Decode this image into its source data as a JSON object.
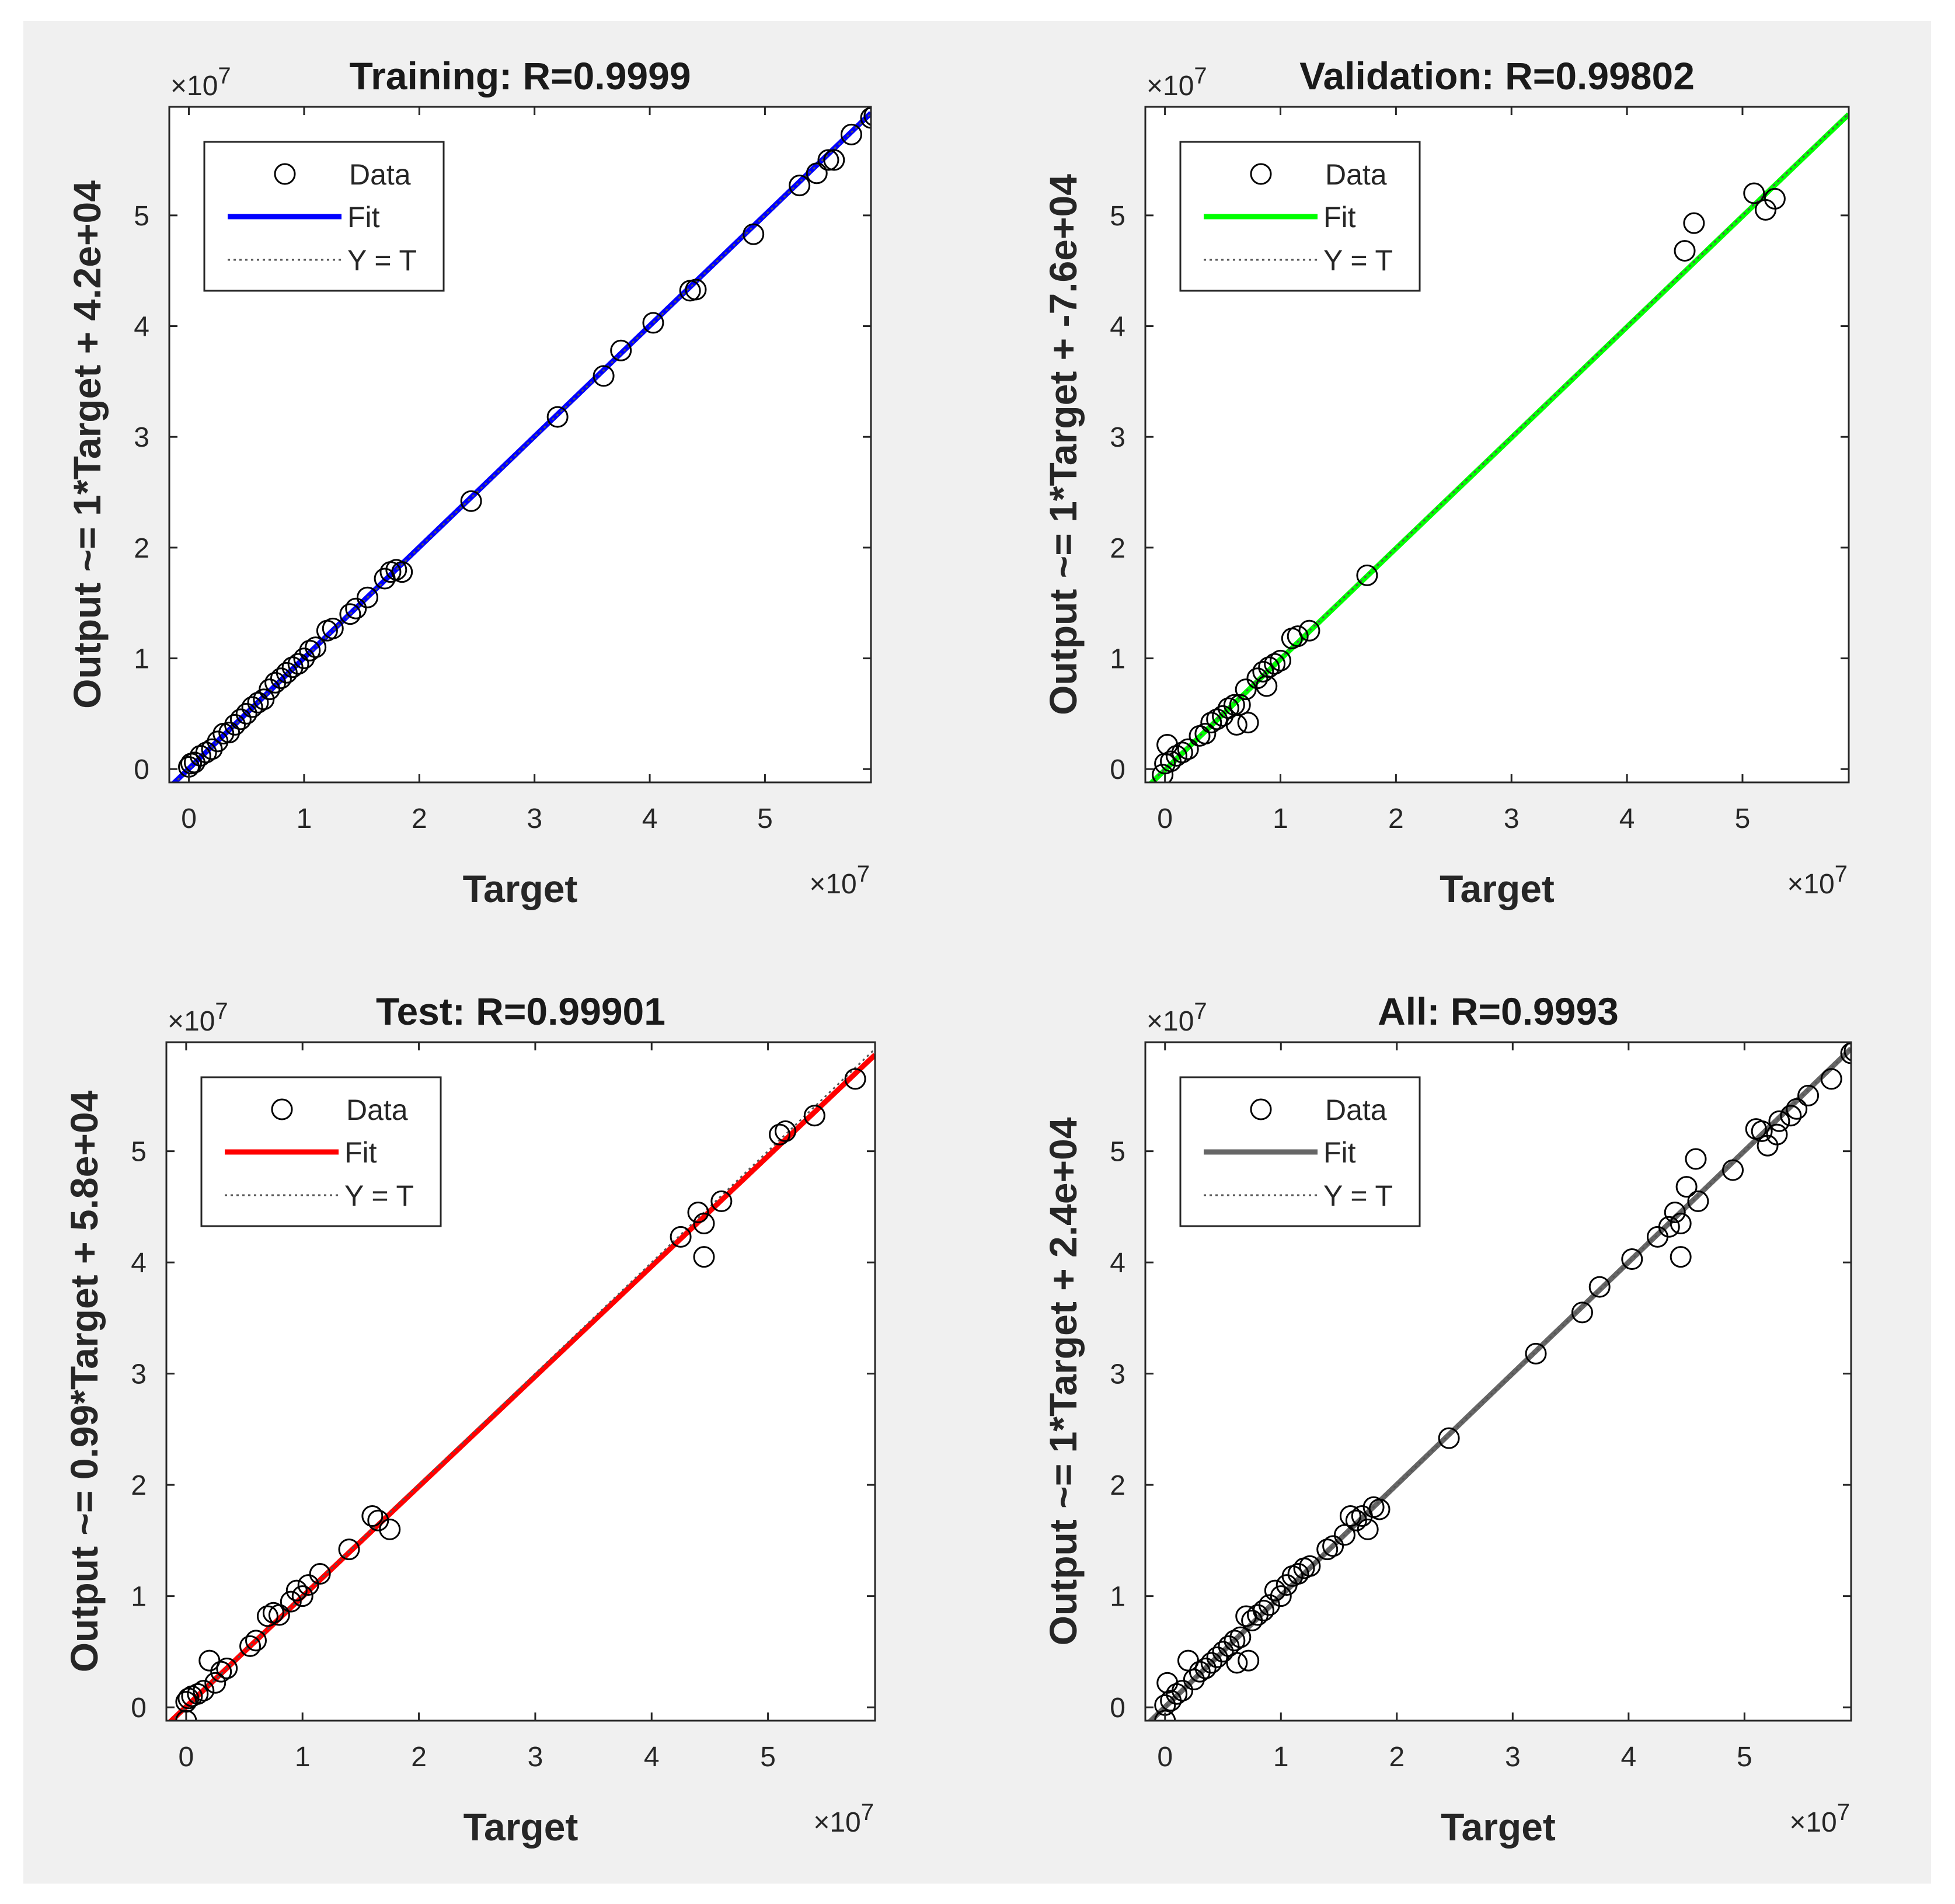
{
  "figure_background": "#f0f0f0",
  "chart_data": [
    {
      "type": "scatter",
      "title": "Training: R=0.9999",
      "xlabel": "Target",
      "ylabel": "Output ~= 1*Target + 4.2e+04",
      "x_exponent_label": "×10",
      "y_exponent_label": "×10",
      "exponent": "7",
      "xlim": [
        -0.17,
        5.92
      ],
      "ylim": [
        -0.12,
        5.98
      ],
      "xticks": [
        "0",
        "1",
        "2",
        "3",
        "4",
        "5"
      ],
      "yticks": [
        "0",
        "1",
        "2",
        "3",
        "4",
        "5"
      ],
      "grid": false,
      "legend": {
        "placement": "top-left",
        "entries": [
          "Data",
          "Fit",
          "Y = T"
        ]
      },
      "fit": {
        "slope": 1.0,
        "intercept": 0.0042,
        "color": "#0000ff"
      },
      "identity_line": {
        "style": "dotted",
        "color": "#555555"
      },
      "series": [
        {
          "name": "Data",
          "marker": "circle",
          "color": "#000000",
          "points": [
            [
              0.0,
              0.02
            ],
            [
              0.02,
              0.05
            ],
            [
              0.05,
              0.06
            ],
            [
              0.1,
              0.12
            ],
            [
              0.15,
              0.15
            ],
            [
              0.2,
              0.18
            ],
            [
              0.25,
              0.25
            ],
            [
              0.3,
              0.32
            ],
            [
              0.35,
              0.33
            ],
            [
              0.4,
              0.4
            ],
            [
              0.45,
              0.45
            ],
            [
              0.5,
              0.5
            ],
            [
              0.55,
              0.56
            ],
            [
              0.6,
              0.6
            ],
            [
              0.65,
              0.63
            ],
            [
              0.7,
              0.72
            ],
            [
              0.75,
              0.78
            ],
            [
              0.8,
              0.82
            ],
            [
              0.85,
              0.87
            ],
            [
              0.9,
              0.92
            ],
            [
              0.95,
              0.95
            ],
            [
              1.0,
              1.0
            ],
            [
              1.05,
              1.07
            ],
            [
              1.1,
              1.1
            ],
            [
              1.2,
              1.25
            ],
            [
              1.25,
              1.27
            ],
            [
              1.4,
              1.4
            ],
            [
              1.45,
              1.45
            ],
            [
              1.55,
              1.55
            ],
            [
              1.7,
              1.72
            ],
            [
              1.75,
              1.78
            ],
            [
              1.8,
              1.8
            ],
            [
              1.85,
              1.78
            ],
            [
              2.45,
              2.42
            ],
            [
              3.2,
              3.18
            ],
            [
              3.6,
              3.55
            ],
            [
              3.75,
              3.78
            ],
            [
              4.03,
              4.03
            ],
            [
              4.35,
              4.32
            ],
            [
              4.4,
              4.33
            ],
            [
              4.9,
              4.83
            ],
            [
              5.3,
              5.27
            ],
            [
              5.45,
              5.38
            ],
            [
              5.55,
              5.5
            ],
            [
              5.6,
              5.5
            ],
            [
              5.75,
              5.73
            ],
            [
              5.92,
              5.88
            ],
            [
              5.95,
              5.9
            ]
          ]
        }
      ]
    },
    {
      "type": "scatter",
      "title": "Validation: R=0.99802",
      "xlabel": "Target",
      "ylabel": "Output ~= 1*Target + -7.6e+04",
      "x_exponent_label": "×10",
      "y_exponent_label": "×10",
      "exponent": "7",
      "xlim": [
        -0.17,
        5.92
      ],
      "ylim": [
        -0.12,
        5.98
      ],
      "xticks": [
        "0",
        "1",
        "2",
        "3",
        "4",
        "5"
      ],
      "yticks": [
        "0",
        "1",
        "2",
        "3",
        "4",
        "5"
      ],
      "grid": false,
      "legend": {
        "placement": "top-left",
        "entries": [
          "Data",
          "Fit",
          "Y = T"
        ]
      },
      "fit": {
        "slope": 1.0,
        "intercept": -0.0076,
        "color": "#00ff00"
      },
      "identity_line": {
        "style": "dotted",
        "color": "#555555"
      },
      "series": [
        {
          "name": "Data",
          "marker": "circle",
          "color": "#000000",
          "points": [
            [
              -0.02,
              -0.05
            ],
            [
              0.0,
              0.05
            ],
            [
              0.02,
              0.22
            ],
            [
              0.05,
              0.07
            ],
            [
              0.1,
              0.12
            ],
            [
              0.15,
              0.15
            ],
            [
              0.2,
              0.18
            ],
            [
              0.3,
              0.3
            ],
            [
              0.35,
              0.32
            ],
            [
              0.4,
              0.42
            ],
            [
              0.45,
              0.45
            ],
            [
              0.5,
              0.48
            ],
            [
              0.55,
              0.55
            ],
            [
              0.6,
              0.58
            ],
            [
              0.62,
              0.4
            ],
            [
              0.65,
              0.58
            ],
            [
              0.7,
              0.72
            ],
            [
              0.72,
              0.42
            ],
            [
              0.8,
              0.82
            ],
            [
              0.85,
              0.88
            ],
            [
              0.88,
              0.75
            ],
            [
              0.9,
              0.92
            ],
            [
              0.95,
              0.95
            ],
            [
              1.0,
              0.98
            ],
            [
              1.1,
              1.18
            ],
            [
              1.15,
              1.2
            ],
            [
              1.25,
              1.25
            ],
            [
              1.75,
              1.75
            ],
            [
              4.5,
              4.68
            ],
            [
              4.58,
              4.93
            ],
            [
              5.1,
              5.2
            ],
            [
              5.2,
              5.05
            ],
            [
              5.28,
              5.15
            ]
          ]
        }
      ]
    },
    {
      "type": "scatter",
      "title": "Test: R=0.99901",
      "xlabel": "Target",
      "ylabel": "Output ~= 0.99*Target + 5.8e+04",
      "x_exponent_label": "×10",
      "y_exponent_label": "×10",
      "exponent": "7",
      "xlim": [
        -0.17,
        5.92
      ],
      "ylim": [
        -0.12,
        5.98
      ],
      "xticks": [
        "0",
        "1",
        "2",
        "3",
        "4",
        "5"
      ],
      "yticks": [
        "0",
        "1",
        "2",
        "3",
        "4",
        "5"
      ],
      "grid": false,
      "legend": {
        "placement": "top-left",
        "entries": [
          "Data",
          "Fit",
          "Y = T"
        ]
      },
      "fit": {
        "slope": 0.99,
        "intercept": 0.0058,
        "color": "#ff0000"
      },
      "identity_line": {
        "style": "dotted",
        "color": "#555555"
      },
      "series": [
        {
          "name": "Data",
          "marker": "circle",
          "color": "#000000",
          "points": [
            [
              0.0,
              -0.12
            ],
            [
              0.0,
              0.05
            ],
            [
              0.02,
              0.08
            ],
            [
              0.05,
              0.1
            ],
            [
              0.1,
              0.12
            ],
            [
              0.15,
              0.15
            ],
            [
              0.2,
              0.42
            ],
            [
              0.25,
              0.22
            ],
            [
              0.3,
              0.32
            ],
            [
              0.35,
              0.35
            ],
            [
              0.55,
              0.55
            ],
            [
              0.6,
              0.6
            ],
            [
              0.7,
              0.82
            ],
            [
              0.75,
              0.85
            ],
            [
              0.8,
              0.83
            ],
            [
              0.9,
              0.95
            ],
            [
              0.95,
              1.05
            ],
            [
              1.0,
              1.0
            ],
            [
              1.05,
              1.1
            ],
            [
              1.15,
              1.2
            ],
            [
              1.4,
              1.42
            ],
            [
              1.6,
              1.72
            ],
            [
              1.65,
              1.68
            ],
            [
              1.75,
              1.6
            ],
            [
              4.25,
              4.23
            ],
            [
              4.4,
              4.45
            ],
            [
              4.45,
              4.35
            ],
            [
              4.45,
              4.05
            ],
            [
              4.6,
              4.55
            ],
            [
              5.1,
              5.15
            ],
            [
              5.15,
              5.18
            ],
            [
              5.4,
              5.32
            ],
            [
              5.75,
              5.65
            ]
          ]
        }
      ]
    },
    {
      "type": "scatter",
      "title": "All: R=0.9993",
      "xlabel": "Target",
      "ylabel": "Output ~= 1*Target + 2.4e+04",
      "x_exponent_label": "×10",
      "y_exponent_label": "×10",
      "exponent": "7",
      "xlim": [
        -0.17,
        5.92
      ],
      "ylim": [
        -0.12,
        5.98
      ],
      "xticks": [
        "0",
        "1",
        "2",
        "3",
        "4",
        "5"
      ],
      "yticks": [
        "0",
        "1",
        "2",
        "3",
        "4",
        "5"
      ],
      "grid": false,
      "legend": {
        "placement": "top-left",
        "entries": [
          "Data",
          "Fit",
          "Y = T"
        ]
      },
      "fit": {
        "slope": 1.0,
        "intercept": 0.0024,
        "color": "#666666"
      },
      "identity_line": {
        "style": "dotted",
        "color": "#555555"
      },
      "series": [
        {
          "name": "Data",
          "marker": "circle",
          "color": "#000000",
          "points": [
            [
              0.0,
              -0.12
            ],
            [
              0.0,
              0.02
            ],
            [
              0.02,
              0.22
            ],
            [
              0.05,
              0.06
            ],
            [
              0.1,
              0.12
            ],
            [
              0.15,
              0.15
            ],
            [
              0.2,
              0.42
            ],
            [
              0.25,
              0.25
            ],
            [
              0.3,
              0.32
            ],
            [
              0.35,
              0.35
            ],
            [
              0.4,
              0.4
            ],
            [
              0.45,
              0.45
            ],
            [
              0.5,
              0.5
            ],
            [
              0.55,
              0.55
            ],
            [
              0.6,
              0.6
            ],
            [
              0.62,
              0.4
            ],
            [
              0.65,
              0.63
            ],
            [
              0.7,
              0.82
            ],
            [
              0.72,
              0.42
            ],
            [
              0.75,
              0.78
            ],
            [
              0.8,
              0.83
            ],
            [
              0.85,
              0.87
            ],
            [
              0.9,
              0.92
            ],
            [
              0.95,
              1.05
            ],
            [
              1.0,
              1.0
            ],
            [
              1.05,
              1.1
            ],
            [
              1.1,
              1.18
            ],
            [
              1.15,
              1.2
            ],
            [
              1.2,
              1.25
            ],
            [
              1.25,
              1.27
            ],
            [
              1.4,
              1.42
            ],
            [
              1.45,
              1.45
            ],
            [
              1.55,
              1.55
            ],
            [
              1.6,
              1.72
            ],
            [
              1.65,
              1.68
            ],
            [
              1.7,
              1.72
            ],
            [
              1.75,
              1.6
            ],
            [
              1.8,
              1.8
            ],
            [
              1.85,
              1.78
            ],
            [
              2.45,
              2.42
            ],
            [
              3.2,
              3.18
            ],
            [
              3.6,
              3.55
            ],
            [
              3.75,
              3.78
            ],
            [
              4.03,
              4.03
            ],
            [
              4.25,
              4.23
            ],
            [
              4.35,
              4.32
            ],
            [
              4.4,
              4.45
            ],
            [
              4.45,
              4.35
            ],
            [
              4.45,
              4.05
            ],
            [
              4.5,
              4.68
            ],
            [
              4.58,
              4.93
            ],
            [
              4.6,
              4.55
            ],
            [
              4.9,
              4.83
            ],
            [
              5.1,
              5.2
            ],
            [
              5.15,
              5.18
            ],
            [
              5.2,
              5.05
            ],
            [
              5.28,
              5.15
            ],
            [
              5.3,
              5.27
            ],
            [
              5.4,
              5.32
            ],
            [
              5.45,
              5.38
            ],
            [
              5.55,
              5.5
            ],
            [
              5.75,
              5.65
            ],
            [
              5.92,
              5.88
            ],
            [
              5.95,
              5.9
            ]
          ]
        }
      ]
    }
  ]
}
